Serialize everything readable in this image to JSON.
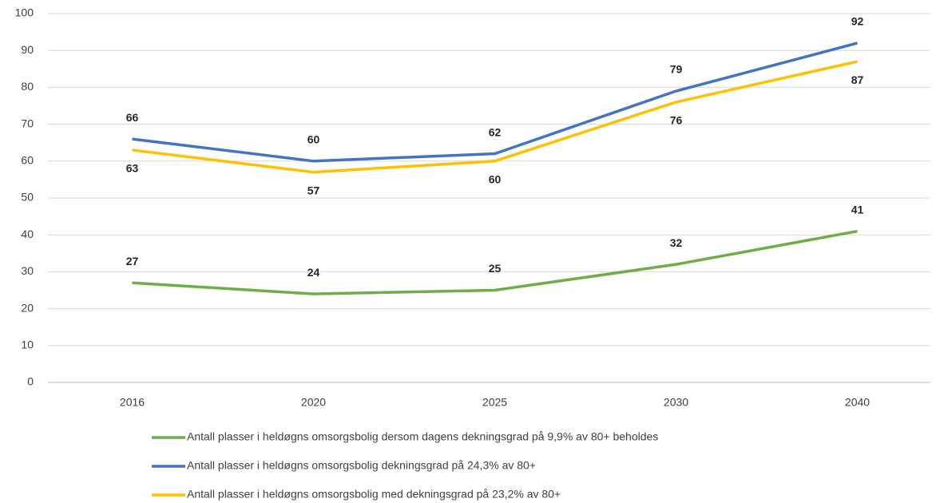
{
  "chart_data": {
    "type": "line",
    "categories": [
      "2016",
      "2020",
      "2025",
      "2030",
      "2040"
    ],
    "series": [
      {
        "name": "Antall plasser i heldøgns omsorgsbolig dersom dagens dekningsgrad på 9,9% av 80+ beholdes",
        "color": "#70ad47",
        "values": [
          27,
          24,
          25,
          32,
          41
        ]
      },
      {
        "name": "Antall plasser i heldøgns omsorgsbolig dekningsgrad på 24,3% av 80+",
        "color": "#4472c4",
        "values": [
          66,
          60,
          62,
          79,
          92
        ]
      },
      {
        "name": "Antall plasser i heldøgns omsorgsbolig med dekningsgrad på 23,2% av 80+",
        "color": "#ffc000",
        "values": [
          63,
          57,
          60,
          76,
          87
        ]
      }
    ],
    "ylim": [
      0,
      100
    ],
    "yticks": [
      0,
      10,
      20,
      30,
      40,
      50,
      60,
      70,
      80,
      90,
      100
    ],
    "grid": true,
    "legend": "bottom"
  }
}
